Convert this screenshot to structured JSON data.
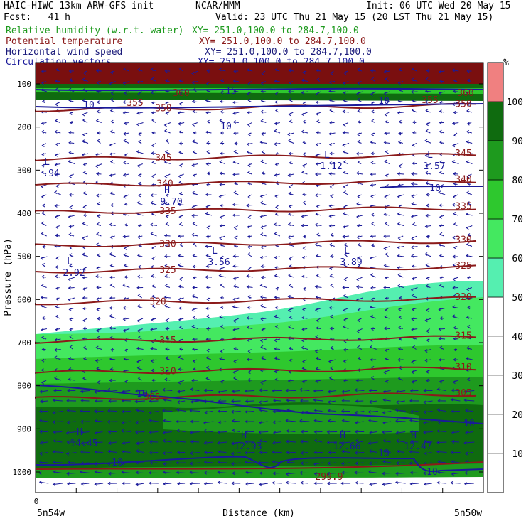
{
  "header": {
    "model": "HAIC-HIWC 13km ARW-GFS init",
    "org": "NCAR/MMM",
    "init": "Init: 06 UTC Wed 20 May 15",
    "fcst": "Fcst:   41 h",
    "valid": "Valid: 23 UTC Thu 21 May 15 (20 LST Thu 21 May 15)"
  },
  "fields": [
    {
      "name": "Relative humidity (w.r.t. water)",
      "xy": "XY= 251.0,100.0 to 284.7,100.0",
      "color": "#1e9a1e"
    },
    {
      "name": "Potential temperature",
      "xy": "XY= 251.0,100.0 to 284.7,100.0",
      "color": "#8b1a1a"
    },
    {
      "name": "Horizontal wind speed",
      "xy": "XY= 251.0,100.0 to 284.7,100.0",
      "color": "#1a1a7a"
    },
    {
      "name": "Circulation vectors",
      "xy": "XY= 251.0,100.0 to 284.7,100.0",
      "color": "#1a1a9a"
    }
  ],
  "chart_data": {
    "type": "cross-section",
    "ylabel": "Pressure (hPa)",
    "xlabel": "Distance (km)",
    "x_origin_label": "0",
    "x_left_label": "5n54w",
    "x_right_label": "5n50w",
    "y_ticks": [
      100,
      200,
      300,
      400,
      500,
      600,
      700,
      800,
      900,
      1000
    ],
    "ylim": [
      1050,
      50
    ],
    "colorbar": {
      "unit": "%",
      "ticks": [
        10,
        20,
        30,
        40,
        50,
        60,
        70,
        80,
        90,
        100
      ],
      "bands": [
        {
          "from": 0,
          "to": 50,
          "color": "#ffffff"
        },
        {
          "from": 50,
          "to": 60,
          "color": "#55efb0"
        },
        {
          "from": 60,
          "to": 70,
          "color": "#44e860"
        },
        {
          "from": 70,
          "to": 80,
          "color": "#2ec82e"
        },
        {
          "from": 80,
          "to": 90,
          "color": "#1e9a1e"
        },
        {
          "from": 90,
          "to": 100,
          "color": "#0f6b0f"
        },
        {
          "from": 100,
          "to": 110,
          "color": "#f08080"
        }
      ]
    },
    "theta_contours": [
      {
        "label": "350",
        "p": 150
      },
      {
        "label": "345",
        "p": 265
      },
      {
        "label": "340",
        "p": 325
      },
      {
        "label": "335",
        "p": 388
      },
      {
        "label": "330",
        "p": 465
      },
      {
        "label": "325",
        "p": 525
      },
      {
        "label": "320",
        "p": 598
      },
      {
        "label": "315",
        "p": 688
      },
      {
        "label": "310",
        "p": 760
      },
      {
        "label": "305",
        "p": 820
      }
    ],
    "theta_top_labels": [
      "360",
      "355",
      "355",
      "360"
    ],
    "theta_bottom_label": "299.9",
    "wind_labels": [
      "15",
      "10",
      "10",
      "10",
      "10",
      "10",
      "10",
      "10",
      "10",
      "10"
    ],
    "extrema": [
      {
        "type": "L",
        "value": ".94"
      },
      {
        "type": "L",
        "value": "1.12"
      },
      {
        "type": "L",
        "value": "1.57"
      },
      {
        "type": "H",
        "value": "9.70"
      },
      {
        "type": "L",
        "value": "2.92"
      },
      {
        "type": "L",
        "value": "3.56"
      },
      {
        "type": "L",
        "value": "3.89"
      },
      {
        "type": "H",
        "value": "14.45"
      },
      {
        "type": "H",
        "value": "12.93"
      },
      {
        "type": "H",
        "value": "12.66"
      },
      {
        "type": "H",
        "value": "12.47"
      }
    ]
  }
}
